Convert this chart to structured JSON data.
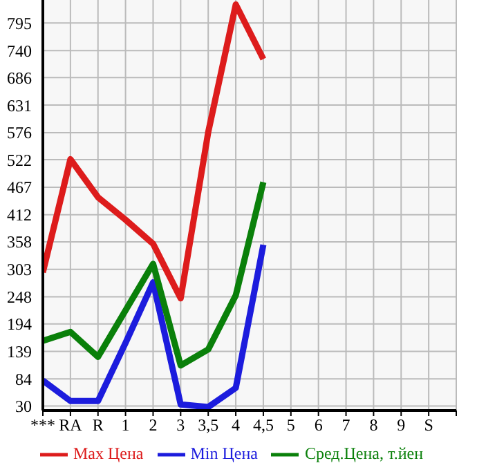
{
  "chart_data": {
    "type": "line",
    "categories": [
      "***",
      "RA",
      "R",
      "1",
      "2",
      "3",
      "3,5",
      "4",
      "4,5",
      "5",
      "6",
      "7",
      "8",
      "9",
      "S"
    ],
    "series": [
      {
        "name": "Max Цена",
        "color": "#dd1c1c",
        "values": [
          297,
          523,
          447,
          402,
          354,
          245,
          577,
          832,
          723,
          null,
          null,
          null,
          null,
          null,
          null
        ]
      },
      {
        "name": "Min Цена",
        "color": "#1c1cdd",
        "values": [
          81,
          40,
          40,
          156,
          277,
          33,
          28,
          66,
          352,
          null,
          null,
          null,
          null,
          null,
          null
        ]
      },
      {
        "name": "Сред.Цена, т.йен",
        "color": "#0a800a",
        "values": [
          160,
          178,
          128,
          221,
          314,
          111,
          143,
          251,
          477,
          null,
          null,
          null,
          null,
          null,
          null
        ]
      }
    ],
    "ylim": [
      21,
      841
    ],
    "yticks": [
      30,
      84,
      139,
      194,
      248,
      303,
      358,
      412,
      467,
      522,
      576,
      631,
      686,
      740,
      795
    ],
    "grid": true,
    "legend": "bottom",
    "marker": "none",
    "line_style": "solid"
  }
}
